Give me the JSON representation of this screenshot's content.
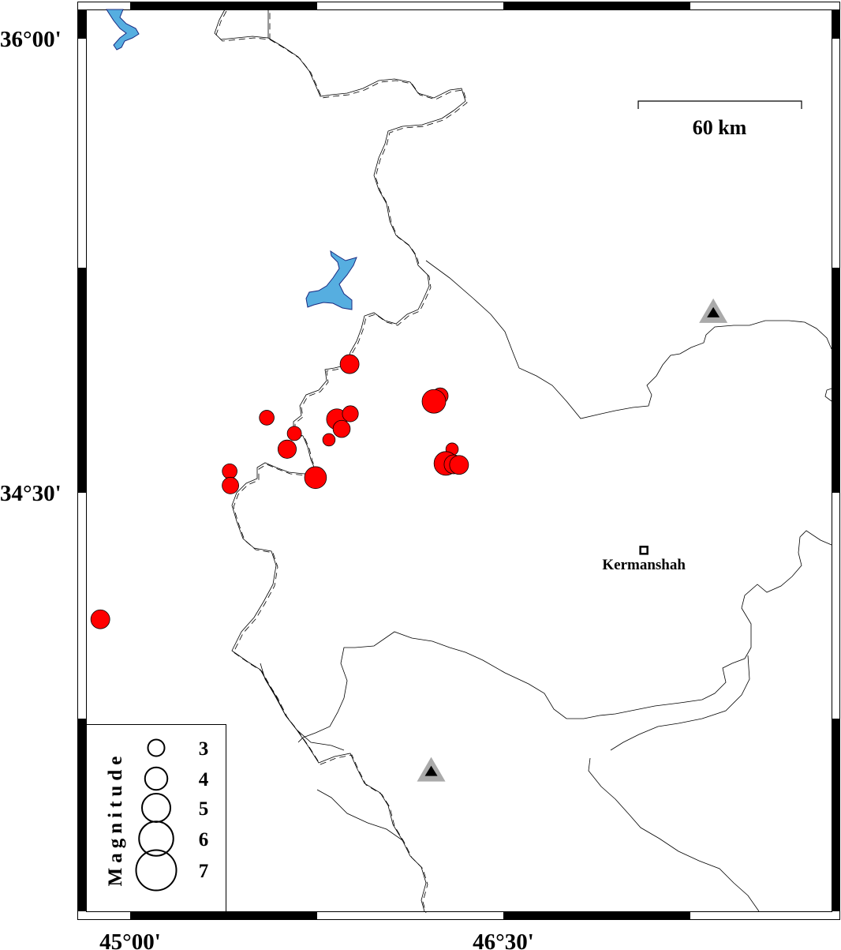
{
  "map": {
    "axes": {
      "lat_labels": [
        {
          "value": 36.0,
          "text": "36°00'"
        },
        {
          "value": 34.5,
          "text": "34°30'"
        }
      ],
      "lon_labels": [
        {
          "value": 45.0,
          "text": "45°00'"
        },
        {
          "value": 46.5,
          "text": "46°30'"
        }
      ]
    },
    "scale_bar": {
      "label": "60 km",
      "length_km": 60
    },
    "city": {
      "name": "Kermanshah",
      "lon": 47.065,
      "lat": 34.31
    },
    "stations": [
      {
        "lon": 47.344,
        "lat": 35.095
      },
      {
        "lon": 46.21,
        "lat": 33.58
      }
    ],
    "colors": {
      "event": "#ff0000",
      "lake": "#56aee0",
      "station_outer": "#aaaaaa",
      "station_inner": "#000000"
    },
    "events": [
      {
        "lon": 45.882,
        "lat": 34.925,
        "mag": 3.4
      },
      {
        "lon": 45.549,
        "lat": 34.748,
        "mag": 2.7
      },
      {
        "lon": 45.66,
        "lat": 34.696,
        "mag": 2.6
      },
      {
        "lon": 45.631,
        "lat": 34.644,
        "mag": 3.3
      },
      {
        "lon": 45.4,
        "lat": 34.571,
        "mag": 2.7
      },
      {
        "lon": 45.403,
        "lat": 34.524,
        "mag": 3.0
      },
      {
        "lon": 45.745,
        "lat": 34.55,
        "mag": 3.9
      },
      {
        "lon": 45.831,
        "lat": 34.743,
        "mag": 3.7
      },
      {
        "lon": 45.885,
        "lat": 34.761,
        "mag": 2.9
      },
      {
        "lon": 45.85,
        "lat": 34.711,
        "mag": 3.1
      },
      {
        "lon": 45.799,
        "lat": 34.675,
        "mag": 2.3
      },
      {
        "lon": 46.246,
        "lat": 34.82,
        "mag": 2.9
      },
      {
        "lon": 46.221,
        "lat": 34.802,
        "mag": 4.2
      },
      {
        "lon": 46.294,
        "lat": 34.644,
        "mag": 2.3
      },
      {
        "lon": 46.269,
        "lat": 34.597,
        "mag": 4.2
      },
      {
        "lon": 46.3,
        "lat": 34.594,
        "mag": 3.4
      },
      {
        "lon": 46.322,
        "lat": 34.592,
        "mag": 3.4
      },
      {
        "lon": 44.88,
        "lat": 34.082,
        "mag": 3.4
      }
    ],
    "legend": {
      "title": "Magnitude",
      "items": [
        {
          "mag": 3,
          "label": "3"
        },
        {
          "mag": 4,
          "label": "4"
        },
        {
          "mag": 5,
          "label": "5"
        },
        {
          "mag": 6,
          "label": "6"
        },
        {
          "mag": 7,
          "label": "7"
        }
      ]
    }
  }
}
